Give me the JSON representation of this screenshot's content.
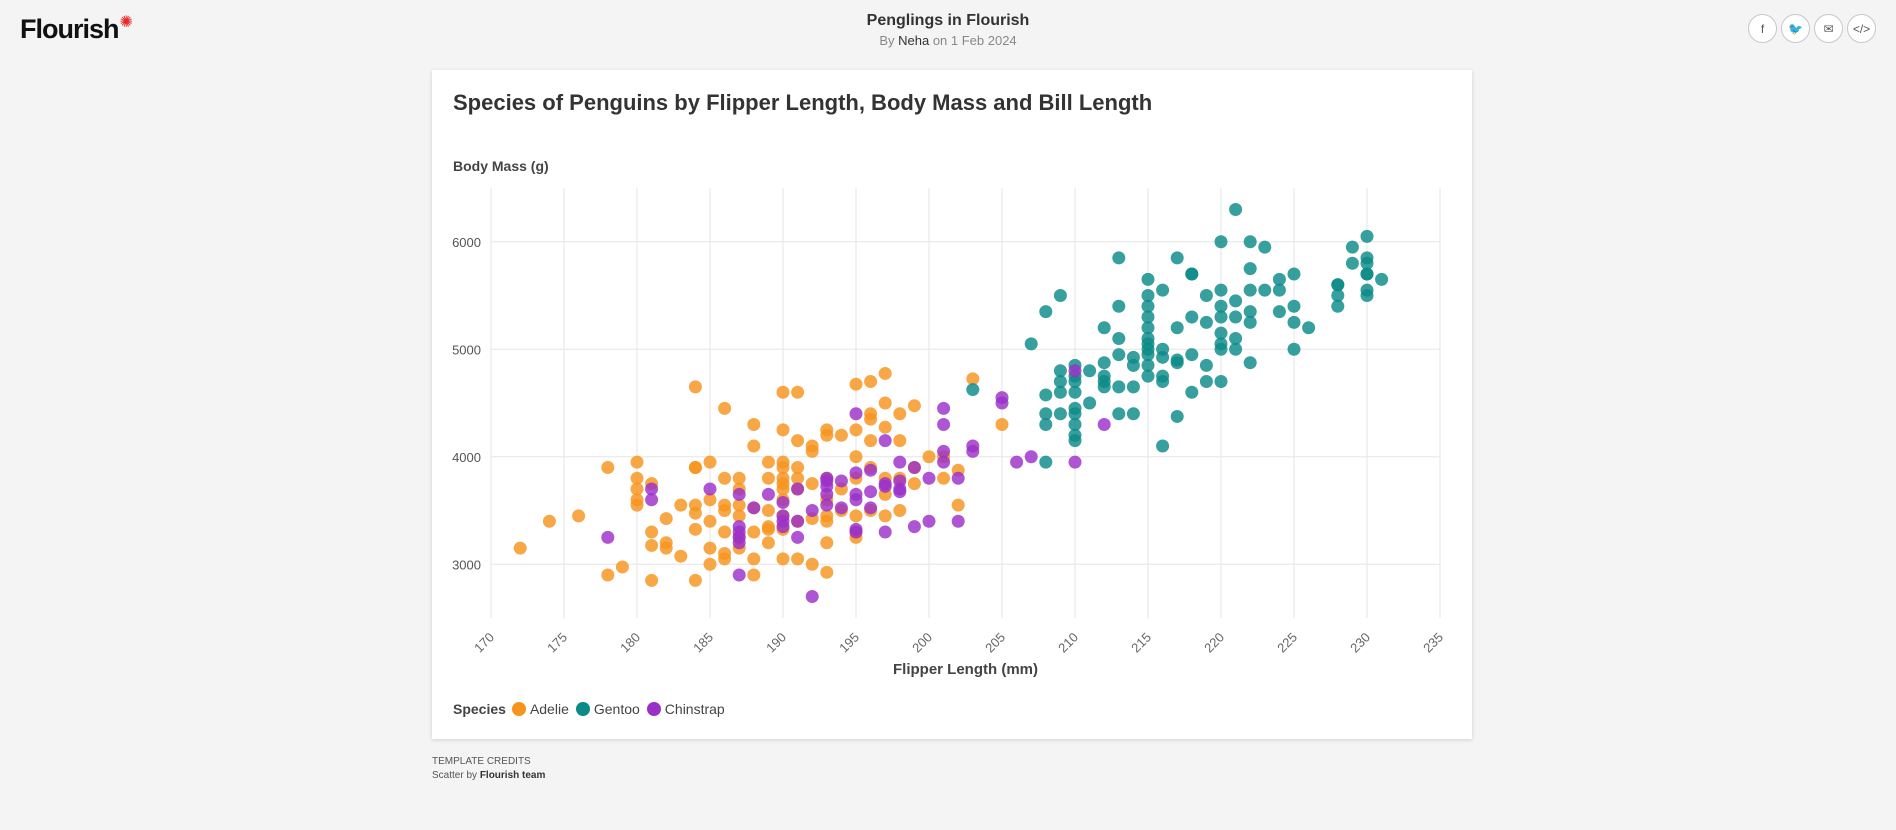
{
  "header": {
    "logo_text": "Flourish",
    "title": "Penglings in Flourish",
    "byline_prefix": "By",
    "author": "Neha",
    "date_text": "on 1 Feb 2024"
  },
  "share": [
    {
      "label": "f",
      "icon": "facebook-icon"
    },
    {
      "label": "🐦",
      "icon": "twitter-icon"
    },
    {
      "label": "✉",
      "icon": "email-icon"
    },
    {
      "label": "</>",
      "icon": "embed-code-icon"
    }
  ],
  "legend": {
    "title": "Species",
    "items": [
      {
        "name": "Adelie",
        "color": "#F7941D"
      },
      {
        "name": "Gentoo",
        "color": "#0B8A87"
      },
      {
        "name": "Chinstrap",
        "color": "#9B30C8"
      }
    ]
  },
  "credits": {
    "title": "Template credits",
    "prefix": "Scatter by",
    "team": "Flourish team"
  },
  "chart_data": {
    "type": "scatter",
    "title": "Species of Penguins by Flipper Length, Body Mass and Bill Length",
    "xlabel": "Flipper Length (mm)",
    "ylabel": "Body Mass (g)",
    "xlim": [
      170,
      235
    ],
    "ylim": [
      2500,
      6500
    ],
    "xticks": [
      170,
      175,
      180,
      185,
      190,
      195,
      200,
      205,
      210,
      215,
      220,
      225,
      230,
      235
    ],
    "yticks": [
      3000,
      4000,
      5000,
      6000
    ],
    "grid": true,
    "legend_position": "bottom-left",
    "series": [
      {
        "name": "Adelie",
        "color": "#F7941D",
        "points": [
          [
            172,
            3150
          ],
          [
            174,
            3400
          ],
          [
            176,
            3450
          ],
          [
            178,
            2900
          ],
          [
            178,
            3900
          ],
          [
            179,
            2975
          ],
          [
            180,
            3550
          ],
          [
            180,
            3600
          ],
          [
            180,
            3700
          ],
          [
            180,
            3800
          ],
          [
            180,
            3950
          ],
          [
            181,
            2850
          ],
          [
            181,
            3300
          ],
          [
            181,
            3175
          ],
          [
            181,
            3750
          ],
          [
            182,
            3200
          ],
          [
            182,
            3150
          ],
          [
            182,
            3425
          ],
          [
            183,
            3075
          ],
          [
            183,
            3550
          ],
          [
            184,
            2850
          ],
          [
            184,
            3325
          ],
          [
            184,
            3475
          ],
          [
            184,
            3550
          ],
          [
            184,
            3900
          ],
          [
            184,
            3900
          ],
          [
            184,
            4650
          ],
          [
            185,
            3000
          ],
          [
            185,
            3150
          ],
          [
            185,
            3400
          ],
          [
            185,
            3600
          ],
          [
            185,
            3950
          ],
          [
            186,
            3050
          ],
          [
            186,
            3100
          ],
          [
            186,
            3300
          ],
          [
            186,
            3500
          ],
          [
            186,
            3550
          ],
          [
            186,
            3800
          ],
          [
            186,
            4450
          ],
          [
            187,
            3150
          ],
          [
            187,
            3250
          ],
          [
            187,
            3450
          ],
          [
            187,
            3550
          ],
          [
            187,
            3700
          ],
          [
            187,
            3800
          ],
          [
            188,
            2900
          ],
          [
            188,
            3050
          ],
          [
            188,
            3300
          ],
          [
            188,
            3525
          ],
          [
            188,
            4100
          ],
          [
            188,
            4300
          ],
          [
            189,
            3200
          ],
          [
            189,
            3325
          ],
          [
            189,
            3350
          ],
          [
            189,
            3500
          ],
          [
            189,
            3800
          ],
          [
            189,
            3950
          ],
          [
            190,
            3050
          ],
          [
            190,
            3325
          ],
          [
            190,
            3450
          ],
          [
            190,
            3600
          ],
          [
            190,
            3700
          ],
          [
            190,
            3750
          ],
          [
            190,
            3800
          ],
          [
            190,
            3900
          ],
          [
            190,
            3950
          ],
          [
            190,
            4250
          ],
          [
            190,
            4600
          ],
          [
            191,
            3050
          ],
          [
            191,
            3400
          ],
          [
            191,
            3700
          ],
          [
            191,
            3800
          ],
          [
            191,
            3900
          ],
          [
            191,
            4150
          ],
          [
            191,
            4600
          ],
          [
            192,
            3000
          ],
          [
            192,
            3425
          ],
          [
            192,
            3750
          ],
          [
            192,
            4050
          ],
          [
            192,
            4100
          ],
          [
            193,
            2925
          ],
          [
            193,
            3200
          ],
          [
            193,
            3400
          ],
          [
            193,
            3450
          ],
          [
            193,
            3600
          ],
          [
            193,
            3800
          ],
          [
            193,
            4200
          ],
          [
            193,
            4250
          ],
          [
            194,
            3500
          ],
          [
            194,
            3700
          ],
          [
            194,
            4200
          ],
          [
            195,
            3250
          ],
          [
            195,
            3300
          ],
          [
            195,
            3450
          ],
          [
            195,
            3800
          ],
          [
            195,
            4000
          ],
          [
            195,
            4250
          ],
          [
            195,
            4675
          ],
          [
            196,
            3500
          ],
          [
            196,
            3900
          ],
          [
            196,
            4150
          ],
          [
            196,
            4350
          ],
          [
            196,
            4400
          ],
          [
            196,
            4700
          ],
          [
            197,
            3450
          ],
          [
            197,
            3650
          ],
          [
            197,
            3800
          ],
          [
            197,
            4275
          ],
          [
            197,
            4500
          ],
          [
            197,
            4775
          ],
          [
            198,
            3500
          ],
          [
            198,
            3800
          ],
          [
            198,
            4150
          ],
          [
            198,
            4400
          ],
          [
            199,
            3750
          ],
          [
            199,
            3900
          ],
          [
            199,
            4475
          ],
          [
            200,
            4000
          ],
          [
            201,
            3800
          ],
          [
            201,
            4000
          ],
          [
            202,
            3550
          ],
          [
            202,
            3875
          ],
          [
            203,
            4725
          ],
          [
            205,
            4300
          ]
        ]
      },
      {
        "name": "Gentoo",
        "color": "#0B8A87",
        "points": [
          [
            203,
            4625
          ],
          [
            207,
            5050
          ],
          [
            208,
            3950
          ],
          [
            208,
            4300
          ],
          [
            208,
            4400
          ],
          [
            208,
            4575
          ],
          [
            208,
            5350
          ],
          [
            209,
            4400
          ],
          [
            209,
            4600
          ],
          [
            209,
            4700
          ],
          [
            209,
            4800
          ],
          [
            209,
            5500
          ],
          [
            210,
            4150
          ],
          [
            210,
            4200
          ],
          [
            210,
            4300
          ],
          [
            210,
            4400
          ],
          [
            210,
            4450
          ],
          [
            210,
            4600
          ],
          [
            210,
            4700
          ],
          [
            210,
            4750
          ],
          [
            210,
            4850
          ],
          [
            211,
            4500
          ],
          [
            211,
            4800
          ],
          [
            212,
            4650
          ],
          [
            212,
            4700
          ],
          [
            212,
            4750
          ],
          [
            212,
            4875
          ],
          [
            212,
            5200
          ],
          [
            213,
            4400
          ],
          [
            213,
            4650
          ],
          [
            213,
            4950
          ],
          [
            213,
            5100
          ],
          [
            213,
            5400
          ],
          [
            213,
            5850
          ],
          [
            214,
            4400
          ],
          [
            214,
            4650
          ],
          [
            214,
            4850
          ],
          [
            214,
            4925
          ],
          [
            215,
            4750
          ],
          [
            215,
            4850
          ],
          [
            215,
            4950
          ],
          [
            215,
            5000
          ],
          [
            215,
            5050
          ],
          [
            215,
            5100
          ],
          [
            215,
            5200
          ],
          [
            215,
            5300
          ],
          [
            215,
            5400
          ],
          [
            215,
            5500
          ],
          [
            215,
            5650
          ],
          [
            216,
            4100
          ],
          [
            216,
            4700
          ],
          [
            216,
            4750
          ],
          [
            216,
            4925
          ],
          [
            216,
            5000
          ],
          [
            216,
            5550
          ],
          [
            217,
            4375
          ],
          [
            217,
            4875
          ],
          [
            217,
            4900
          ],
          [
            217,
            5200
          ],
          [
            217,
            5850
          ],
          [
            218,
            4600
          ],
          [
            218,
            4950
          ],
          [
            218,
            5300
          ],
          [
            218,
            5700
          ],
          [
            218,
            5700
          ],
          [
            219,
            4700
          ],
          [
            219,
            4850
          ],
          [
            219,
            5250
          ],
          [
            219,
            5500
          ],
          [
            220,
            4700
          ],
          [
            220,
            5000
          ],
          [
            220,
            5050
          ],
          [
            220,
            5150
          ],
          [
            220,
            5300
          ],
          [
            220,
            5400
          ],
          [
            220,
            5550
          ],
          [
            220,
            6000
          ],
          [
            221,
            5000
          ],
          [
            221,
            5100
          ],
          [
            221,
            5300
          ],
          [
            221,
            5450
          ],
          [
            221,
            6300
          ],
          [
            222,
            4875
          ],
          [
            222,
            5250
          ],
          [
            222,
            5350
          ],
          [
            222,
            5550
          ],
          [
            222,
            5750
          ],
          [
            222,
            6000
          ],
          [
            223,
            5550
          ],
          [
            223,
            5950
          ],
          [
            224,
            5350
          ],
          [
            224,
            5550
          ],
          [
            224,
            5650
          ],
          [
            225,
            5000
          ],
          [
            225,
            5250
          ],
          [
            225,
            5400
          ],
          [
            225,
            5700
          ],
          [
            226,
            5200
          ],
          [
            228,
            5400
          ],
          [
            228,
            5500
          ],
          [
            228,
            5600
          ],
          [
            228,
            5600
          ],
          [
            229,
            5800
          ],
          [
            229,
            5950
          ],
          [
            230,
            5500
          ],
          [
            230,
            5550
          ],
          [
            230,
            5700
          ],
          [
            230,
            5700
          ],
          [
            230,
            5800
          ],
          [
            230,
            5850
          ],
          [
            230,
            6050
          ],
          [
            231,
            5650
          ]
        ]
      },
      {
        "name": "Chinstrap",
        "color": "#9B30C8",
        "points": [
          [
            178,
            3250
          ],
          [
            181,
            3600
          ],
          [
            181,
            3700
          ],
          [
            185,
            3700
          ],
          [
            187,
            2900
          ],
          [
            187,
            3200
          ],
          [
            187,
            3250
          ],
          [
            187,
            3300
          ],
          [
            187,
            3350
          ],
          [
            187,
            3650
          ],
          [
            188,
            3525
          ],
          [
            189,
            3650
          ],
          [
            190,
            3350
          ],
          [
            190,
            3400
          ],
          [
            190,
            3450
          ],
          [
            190,
            3575
          ],
          [
            191,
            3250
          ],
          [
            191,
            3400
          ],
          [
            191,
            3700
          ],
          [
            192,
            2700
          ],
          [
            192,
            3500
          ],
          [
            193,
            3550
          ],
          [
            193,
            3650
          ],
          [
            193,
            3725
          ],
          [
            193,
            3775
          ],
          [
            193,
            3800
          ],
          [
            194,
            3525
          ],
          [
            194,
            3775
          ],
          [
            195,
            3300
          ],
          [
            195,
            3325
          ],
          [
            195,
            3600
          ],
          [
            195,
            3650
          ],
          [
            195,
            3850
          ],
          [
            195,
            4400
          ],
          [
            196,
            3525
          ],
          [
            196,
            3675
          ],
          [
            196,
            3875
          ],
          [
            197,
            3300
          ],
          [
            197,
            3725
          ],
          [
            197,
            3750
          ],
          [
            197,
            4150
          ],
          [
            198,
            3675
          ],
          [
            198,
            3700
          ],
          [
            198,
            3775
          ],
          [
            198,
            3950
          ],
          [
            199,
            3350
          ],
          [
            199,
            3900
          ],
          [
            200,
            3400
          ],
          [
            200,
            3800
          ],
          [
            201,
            3950
          ],
          [
            201,
            4050
          ],
          [
            201,
            4300
          ],
          [
            201,
            4450
          ],
          [
            202,
            3400
          ],
          [
            202,
            3800
          ],
          [
            203,
            4050
          ],
          [
            203,
            4100
          ],
          [
            205,
            4500
          ],
          [
            205,
            4550
          ],
          [
            206,
            3950
          ],
          [
            207,
            4000
          ],
          [
            210,
            3950
          ],
          [
            210,
            4800
          ],
          [
            212,
            4300
          ]
        ]
      }
    ]
  }
}
